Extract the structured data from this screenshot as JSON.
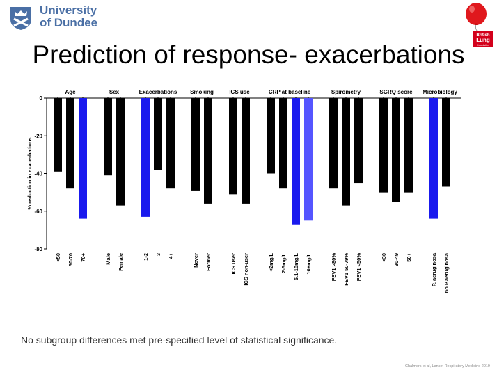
{
  "branding": {
    "university_line1": "University",
    "university_line2": "of Dundee",
    "blf_logo_text": [
      "British",
      "Lung",
      "Foundation"
    ]
  },
  "slide": {
    "title": "Prediction of response- exacerbations",
    "footnote": "No subgroup differences met pre-specified level of statistical significance.",
    "citation": "Chalmers et al, Lancet Respiratory Medicine 2019"
  },
  "chart_data": {
    "type": "bar",
    "ylabel": "% reduction in exacerbations",
    "ylim": [
      -80,
      0
    ],
    "yticks": [
      0,
      -20,
      -40,
      -60,
      -80
    ],
    "colors": {
      "default": "#000000",
      "highlight": "#1a1aee",
      "highlight_light": "#5555ff"
    },
    "groups": [
      {
        "label": "Age",
        "bars": [
          {
            "label": "<50",
            "value": -39,
            "color": "default"
          },
          {
            "label": "50-70",
            "value": -48,
            "color": "default"
          },
          {
            "label": "70+",
            "value": -64,
            "color": "highlight"
          }
        ]
      },
      {
        "label": "Sex",
        "bars": [
          {
            "label": "Male",
            "value": -41,
            "color": "default"
          },
          {
            "label": "Female",
            "value": -57,
            "color": "default"
          }
        ]
      },
      {
        "label": "Exacerbations",
        "bars": [
          {
            "label": "1-2",
            "value": -63,
            "color": "highlight"
          },
          {
            "label": "3",
            "value": -38,
            "color": "default"
          },
          {
            "label": "4+",
            "value": -48,
            "color": "default"
          }
        ]
      },
      {
        "label": "Smoking",
        "bars": [
          {
            "label": "Never",
            "value": -49,
            "color": "default"
          },
          {
            "label": "Former",
            "value": -56,
            "color": "default"
          }
        ]
      },
      {
        "label": "ICS use",
        "bars": [
          {
            "label": "ICS user",
            "value": -51,
            "color": "default"
          },
          {
            "label": "ICS non-user",
            "value": -56,
            "color": "default"
          }
        ]
      },
      {
        "label": "CRP at baseline",
        "bars": [
          {
            "label": "<2mg/L",
            "value": -40,
            "color": "default"
          },
          {
            "label": "2-5mg/L",
            "value": -48,
            "color": "default"
          },
          {
            "label": "5.1-10mg/L",
            "value": -67,
            "color": "highlight"
          },
          {
            "label": "10+mg/L",
            "value": -65,
            "color": "highlight_light"
          }
        ]
      },
      {
        "label": "Spirometry",
        "bars": [
          {
            "label": "FEV1 >80%",
            "value": -48,
            "color": "default"
          },
          {
            "label": "FEV1 50-79%",
            "value": -57,
            "color": "default"
          },
          {
            "label": "FEV1 <50%",
            "value": -45,
            "color": "default"
          }
        ]
      },
      {
        "label": "SGRQ score",
        "bars": [
          {
            "label": "<30",
            "value": -50,
            "color": "default"
          },
          {
            "label": "30-49",
            "value": -55,
            "color": "default"
          },
          {
            "label": "50+",
            "value": -50,
            "color": "default"
          }
        ]
      },
      {
        "label": "Microbiology",
        "bars": [
          {
            "label": "P. aeruginosa",
            "value": -64,
            "color": "highlight"
          },
          {
            "label": "no P.aeruginosa",
            "value": -47,
            "color": "default"
          }
        ]
      }
    ]
  }
}
